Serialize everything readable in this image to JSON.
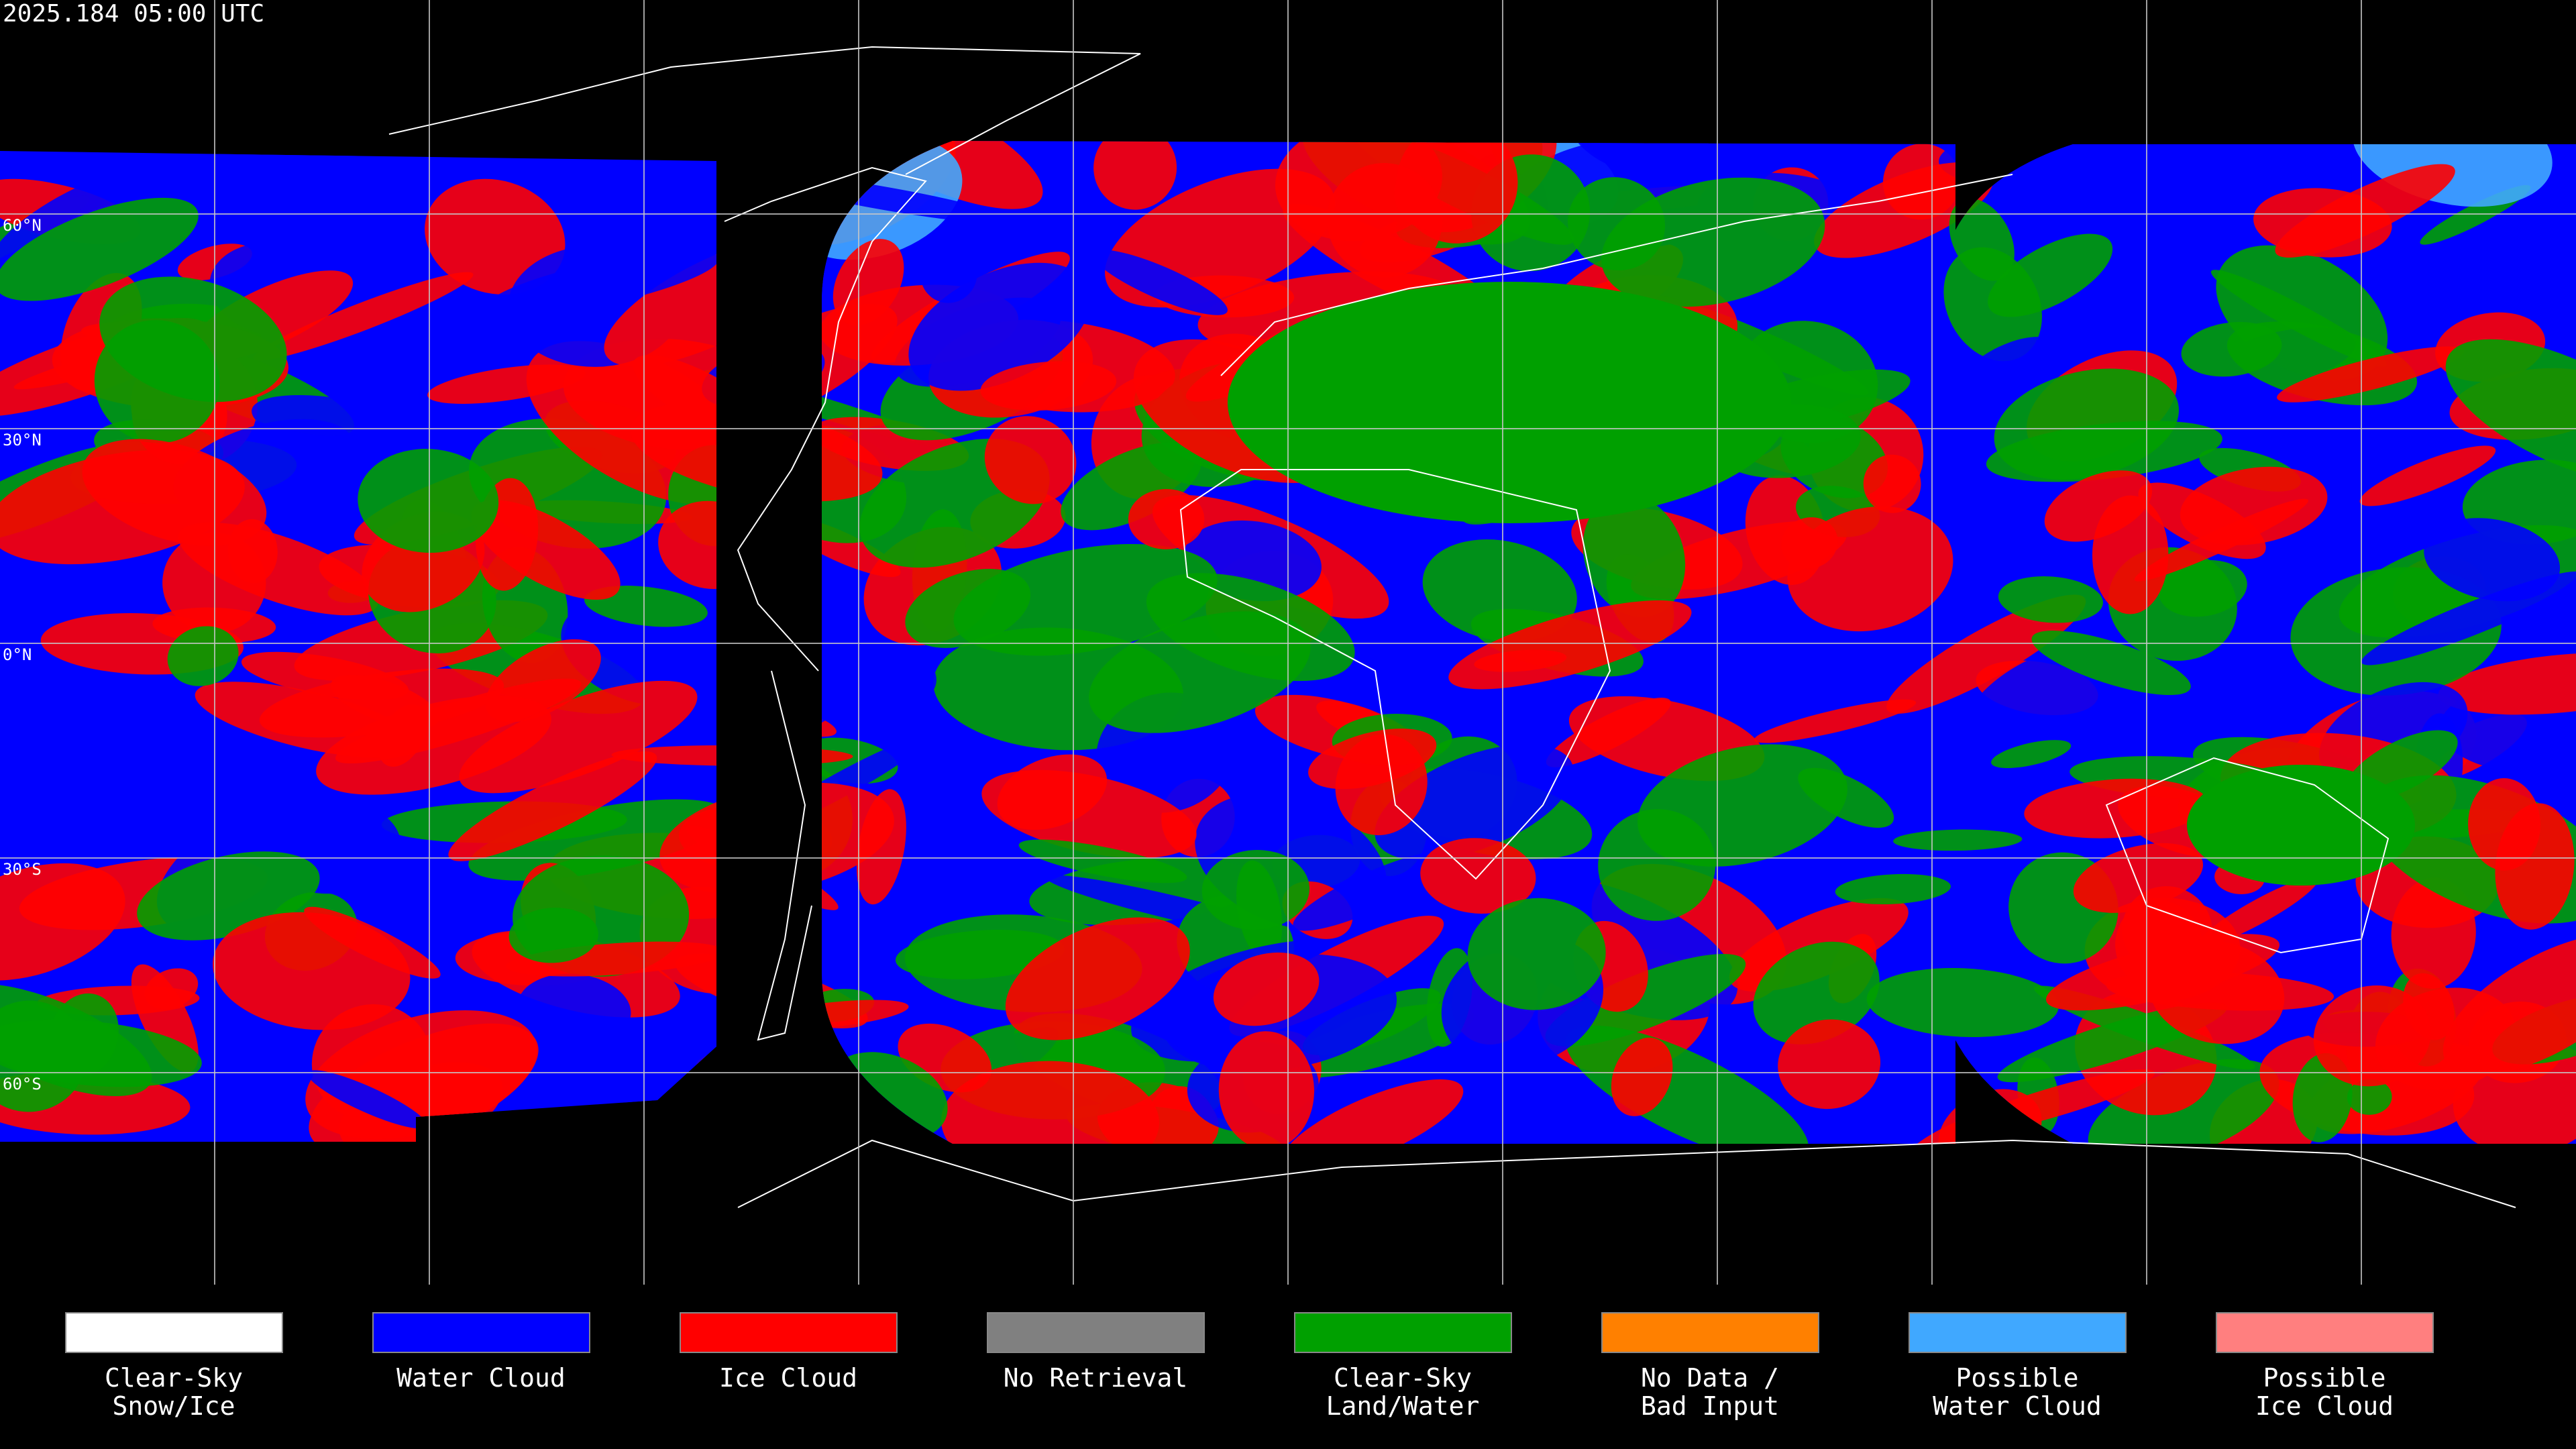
{
  "timestamp": "2025.184 05:00 UTC",
  "latitude_labels": [
    "60°N",
    "30°N",
    "0°N",
    "30°S",
    "60°S"
  ],
  "legend": [
    {
      "label_lines": [
        "Clear-Sky",
        "Snow/Ice"
      ],
      "color": "#ffffff"
    },
    {
      "label_lines": [
        "Water Cloud"
      ],
      "color": "#0000ff"
    },
    {
      "label_lines": [
        "Ice Cloud"
      ],
      "color": "#ff0000"
    },
    {
      "label_lines": [
        "No Retrieval"
      ],
      "color": "#808080"
    },
    {
      "label_lines": [
        "Clear-Sky",
        "Land/Water"
      ],
      "color": "#00a000"
    },
    {
      "label_lines": [
        "No Data /",
        "Bad Input"
      ],
      "color": "#ff8000"
    },
    {
      "label_lines": [
        "Possible",
        "Water Cloud"
      ],
      "color": "#40a8ff"
    },
    {
      "label_lines": [
        "Possible",
        "Ice Cloud"
      ],
      "color": "#ff7f7f"
    }
  ]
}
